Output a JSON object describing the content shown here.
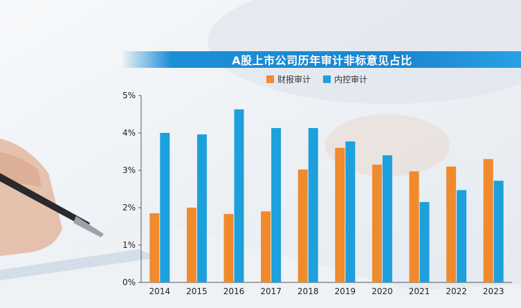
{
  "title": "A股上市公司历年审计非标意见占比",
  "chart_data": {
    "type": "bar",
    "title": "A股上市公司历年审计非标意见占比",
    "categories": [
      "2014",
      "2015",
      "2016",
      "2017",
      "2018",
      "2019",
      "2020",
      "2021",
      "2022",
      "2023"
    ],
    "series": [
      {
        "name": "财报审计",
        "color": "#f08a2c",
        "values": [
          1.85,
          2.0,
          1.83,
          1.9,
          3.02,
          3.6,
          3.15,
          2.97,
          3.1,
          3.3
        ]
      },
      {
        "name": "内控审计",
        "color": "#1ea0dc",
        "values": [
          4.0,
          3.96,
          4.63,
          4.13,
          4.13,
          3.77,
          3.4,
          2.15,
          2.47,
          2.72
        ]
      }
    ],
    "yticks": [
      "0%",
      "1%",
      "2%",
      "3%",
      "4%",
      "5%"
    ],
    "ylim": [
      0,
      5
    ],
    "xlabel": "",
    "ylabel": "",
    "legend_position": "top-center",
    "grid": false
  }
}
